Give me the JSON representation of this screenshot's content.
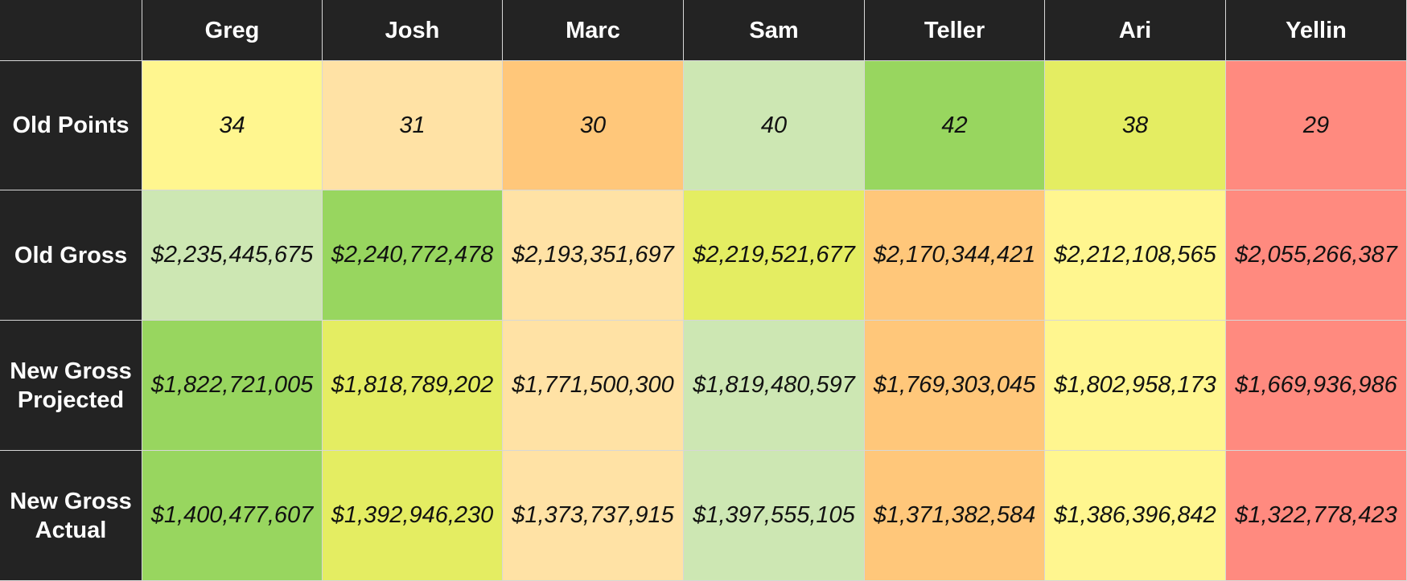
{
  "chart_data": {
    "type": "heatmap",
    "columns": [
      "Greg",
      "Josh",
      "Marc",
      "Sam",
      "Teller",
      "Ari",
      "Yellin"
    ],
    "rows": [
      {
        "label": "Old Points",
        "values": [
          34,
          31,
          30,
          40,
          42,
          38,
          29
        ],
        "display": [
          "34",
          "31",
          "30",
          "40",
          "42",
          "38",
          "29"
        ],
        "colors": [
          "#fff68f",
          "#ffe2a5",
          "#ffc77a",
          "#cde7b3",
          "#98d65f",
          "#e4ed62",
          "#ff8a7f"
        ]
      },
      {
        "label": "Old Gross",
        "values": [
          2235445675,
          2240772478,
          2193351697,
          2219521677,
          2170344421,
          2212108565,
          2055266387
        ],
        "display": [
          "$2,235,445,675",
          "$2,240,772,478",
          "$2,193,351,697",
          "$2,219,521,677",
          "$2,170,344,421",
          "$2,212,108,565",
          "$2,055,266,387"
        ],
        "colors": [
          "#cde7b3",
          "#98d65f",
          "#ffe2a5",
          "#e4ed62",
          "#ffc77a",
          "#fff68f",
          "#ff8a7f"
        ]
      },
      {
        "label": "New Gross Projected",
        "label_lines": [
          "New Gross",
          "Projected"
        ],
        "values": [
          1822721005,
          1818789202,
          1771500300,
          1819480597,
          1769303045,
          1802958173,
          1669936986
        ],
        "display": [
          "$1,822,721,005",
          "$1,818,789,202",
          "$1,771,500,300",
          "$1,819,480,597",
          "$1,769,303,045",
          "$1,802,958,173",
          "$1,669,936,986"
        ],
        "colors": [
          "#98d65f",
          "#e4ed62",
          "#ffe2a5",
          "#cde7b3",
          "#ffc77a",
          "#fff68f",
          "#ff8a7f"
        ]
      },
      {
        "label": "New Gross Actual",
        "label_lines": [
          "New Gross",
          "Actual"
        ],
        "values": [
          1400477607,
          1392946230,
          1373737915,
          1397555105,
          1371382584,
          1386396842,
          1322778423
        ],
        "display": [
          "$1,400,477,607",
          "$1,392,946,230",
          "$1,373,737,915",
          "$1,397,555,105",
          "$1,371,382,584",
          "$1,386,396,842",
          "$1,322,778,423"
        ],
        "colors": [
          "#98d65f",
          "#e4ed62",
          "#ffe2a5",
          "#cde7b3",
          "#ffc77a",
          "#fff68f",
          "#ff8a7f"
        ]
      }
    ],
    "header_background": "#232323",
    "header_text_color": "#ffffff",
    "grid_line_color": "#d7d7d7"
  }
}
